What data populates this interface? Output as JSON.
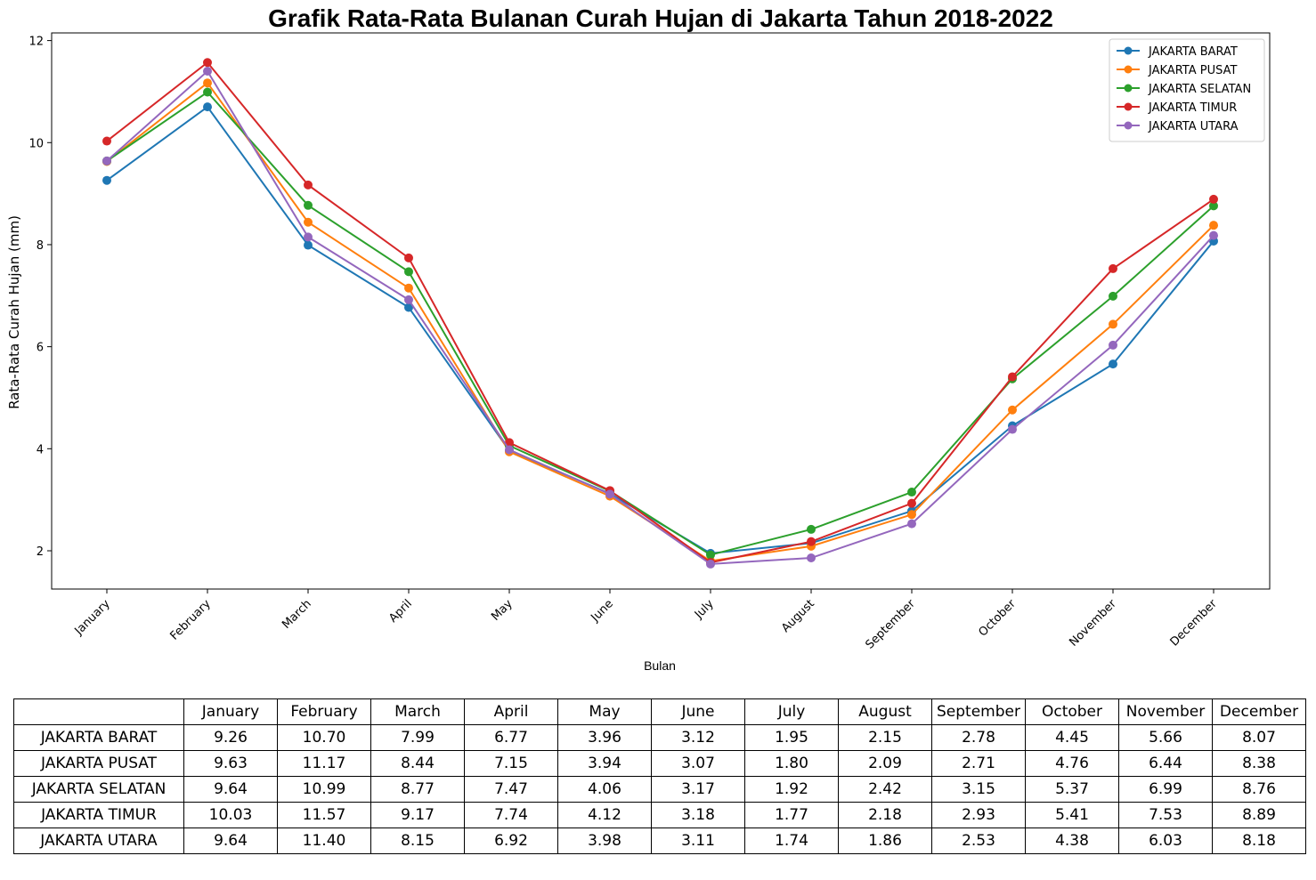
{
  "chart_data": {
    "type": "line",
    "title": "Grafik Rata-Rata Bulanan Curah Hujan di Jakarta Tahun 2018-2022",
    "xlabel": "Bulan",
    "ylabel": "Rata-Rata Curah Hujan (mm)",
    "categories": [
      "January",
      "February",
      "March",
      "April",
      "May",
      "June",
      "July",
      "August",
      "September",
      "October",
      "November",
      "December"
    ],
    "yticks": [
      "2",
      "4",
      "6",
      "8",
      "10",
      "12"
    ],
    "ylim": [
      1.25,
      12.15
    ],
    "grid": false,
    "legend_position": "top-right",
    "series": [
      {
        "name": "JAKARTA BARAT",
        "color": "#1f77b4",
        "values": [
          9.26,
          10.7,
          7.99,
          6.77,
          3.96,
          3.12,
          1.95,
          2.15,
          2.78,
          4.45,
          5.66,
          8.07
        ],
        "labels": [
          "9.26",
          "10.70",
          "7.99",
          "6.77",
          "3.96",
          "3.12",
          "1.95",
          "2.15",
          "2.78",
          "4.45",
          "5.66",
          "8.07"
        ]
      },
      {
        "name": "JAKARTA PUSAT",
        "color": "#ff7f0e",
        "values": [
          9.63,
          11.17,
          8.44,
          7.15,
          3.94,
          3.07,
          1.8,
          2.09,
          2.71,
          4.76,
          6.44,
          8.38
        ],
        "labels": [
          "9.63",
          "11.17",
          "8.44",
          "7.15",
          "3.94",
          "3.07",
          "1.80",
          "2.09",
          "2.71",
          "4.76",
          "6.44",
          "8.38"
        ]
      },
      {
        "name": "JAKARTA SELATAN",
        "color": "#2ca02c",
        "values": [
          9.64,
          10.99,
          8.77,
          7.47,
          4.06,
          3.17,
          1.92,
          2.42,
          3.15,
          5.37,
          6.99,
          8.76
        ],
        "labels": [
          "9.64",
          "10.99",
          "8.77",
          "7.47",
          "4.06",
          "3.17",
          "1.92",
          "2.42",
          "3.15",
          "5.37",
          "6.99",
          "8.76"
        ]
      },
      {
        "name": "JAKARTA TIMUR",
        "color": "#d62728",
        "values": [
          10.03,
          11.57,
          9.17,
          7.74,
          4.12,
          3.18,
          1.77,
          2.18,
          2.93,
          5.41,
          7.53,
          8.89
        ],
        "labels": [
          "10.03",
          "11.57",
          "9.17",
          "7.74",
          "4.12",
          "3.18",
          "1.77",
          "2.18",
          "2.93",
          "5.41",
          "7.53",
          "8.89"
        ]
      },
      {
        "name": "JAKARTA UTARA",
        "color": "#9467bd",
        "values": [
          9.64,
          11.4,
          8.15,
          6.92,
          3.98,
          3.11,
          1.74,
          1.86,
          2.53,
          4.38,
          6.03,
          8.18
        ],
        "labels": [
          "9.64",
          "11.40",
          "8.15",
          "6.92",
          "3.98",
          "3.11",
          "1.74",
          "1.86",
          "2.53",
          "4.38",
          "6.03",
          "8.18"
        ]
      }
    ]
  }
}
